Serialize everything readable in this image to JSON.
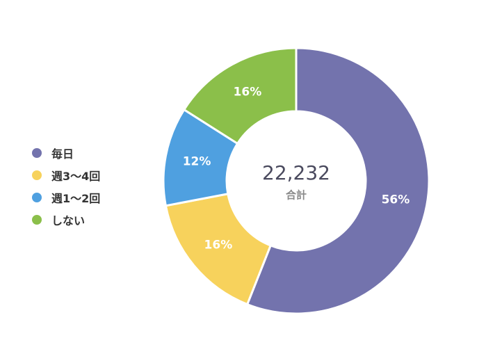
{
  "chart_data": {
    "type": "pie",
    "donut": true,
    "total": "22,232",
    "total_caption": "合計",
    "legend_position": "left",
    "series": [
      {
        "name": "毎日",
        "value": 56,
        "label": "56%",
        "color": "#7373ad"
      },
      {
        "name": "週3〜4回",
        "value": 16,
        "label": "16%",
        "color": "#f7d25c"
      },
      {
        "name": "週1〜2回",
        "value": 12,
        "label": "12%",
        "color": "#4fa0e0"
      },
      {
        "name": "しない",
        "value": 16,
        "label": "16%",
        "color": "#8bbf4a"
      }
    ]
  }
}
